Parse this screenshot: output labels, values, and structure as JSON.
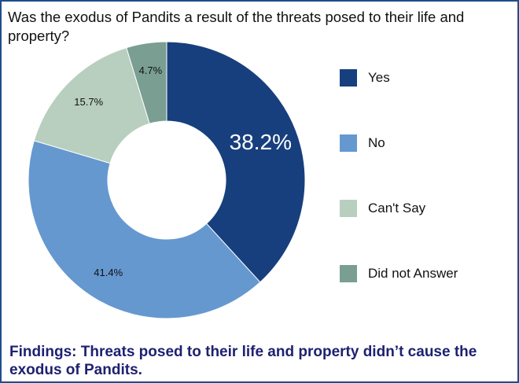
{
  "question": "Was the exodus of Pandits a result of the threats posed to their life and property?",
  "findings": "Findings: Threats posed to their life and property didn’t cause the exodus of Pandits.",
  "chart_data": {
    "type": "pie",
    "donut": true,
    "title": "Was the exodus of Pandits a result of the threats posed to their life and property?",
    "legend_position": "right",
    "slices": [
      {
        "label": "Yes",
        "value": 38.2,
        "display": "38.2%",
        "color": "#183f7d",
        "text_color": "#ffffff"
      },
      {
        "label": "No",
        "value": 41.4,
        "display": "41.4%",
        "color": "#6598cf",
        "text_color": "#111111"
      },
      {
        "label": "Can't Say",
        "value": 15.7,
        "display": "15.7%",
        "color": "#b8cfbf",
        "text_color": "#111111"
      },
      {
        "label": "Did not Answer",
        "value": 4.7,
        "display": "4.7%",
        "color": "#7a9e92",
        "text_color": "#111111"
      }
    ]
  }
}
